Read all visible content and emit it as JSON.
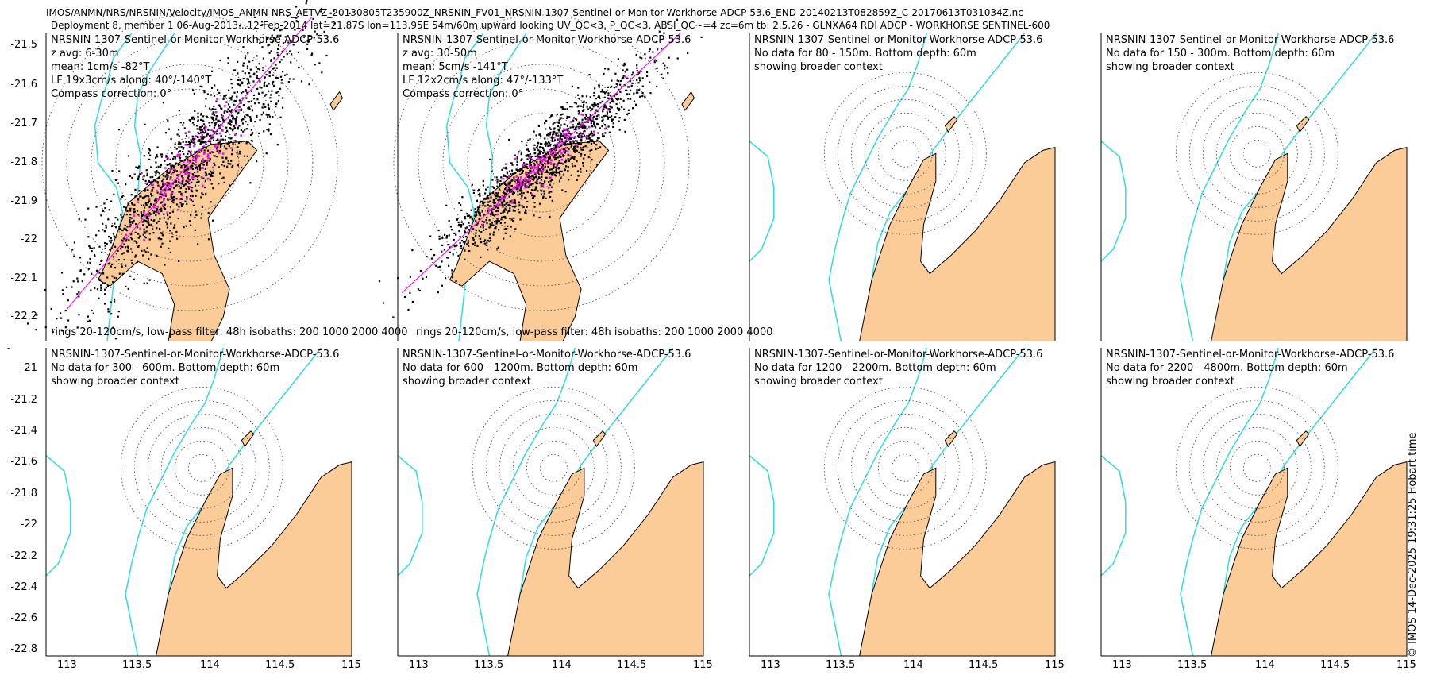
{
  "header": {
    "line1": "IMOS/ANMN/NRS/NRSNIN/Velocity/IMOS_ANMN-NRS_AETVZ_20130805T235900Z_NRSNIN_FV01_NRSNIN-1307-Sentinel-or-Monitor-Workhorse-ADCP-53.6_END-20140213T082859Z_C-20170613T031034Z.nc",
    "line2": "Deployment 8, member 1 06-Aug-2013...12-Feb-2014 lat=21.87S lon=113.95E 54m/60m upward looking UV_QC<3, P_QC<3, ABSI_QC~=4 zc=6m tb: 2.5.26 - GLNXA64 RDI ADCP - WORKHORSE SENTINEL-600"
  },
  "credit": "© IMOS 14-Dec-2025 19:31:25 Hobart time",
  "colors": {
    "land": "#fbcb98",
    "isobath": "#39dde0",
    "scatter": "#000000",
    "mean": "#ff00ff",
    "rings": "#555555"
  },
  "chart_data": [
    {
      "type": "scatter",
      "title": "NRSNIN-1307-Sentinel-or-Monitor-Workhorse-ADCP-53.6",
      "info": [
        "z avg: 6-30m",
        "mean: 1cm/s -82°T",
        "LF 19x3cm/s along: 40°/-140°T",
        "Compass correction: 0°"
      ],
      "footer": "rings 20-120cm/s, low-pass filter: 48h isobaths: 200 1000 2000 4000",
      "yticks": [
        "-21.5",
        "-21.6",
        "-21.7",
        "-21.8",
        "-21.9",
        "-22",
        "-22.1",
        "-22.2"
      ],
      "ylim": [
        -22.25,
        -21.45
      ],
      "xlim": [
        113.2,
        114.8
      ],
      "center": [
        113.95,
        -21.87
      ],
      "along_axis_deg": 40,
      "scatter_extent_deg": [
        0.5,
        0.1
      ],
      "ring_count": 6
    },
    {
      "type": "scatter",
      "title": "NRSNIN-1307-Sentinel-or-Monitor-Workhorse-ADCP-53.6",
      "info": [
        "z avg: 30-50m",
        "mean: 5cm/s -141°T",
        "LF 12x2cm/s along: 47°/-133°T",
        "Compass correction: 0°"
      ],
      "footer": "rings 20-120cm/s, low-pass filter: 48h isobaths: 200 1000 2000 4000",
      "ylim": [
        -22.25,
        -21.45
      ],
      "xlim": [
        113.2,
        114.8
      ],
      "center": [
        113.95,
        -21.87
      ],
      "along_axis_deg": 47,
      "scatter_extent_deg": [
        0.38,
        0.07
      ],
      "ring_count": 6
    },
    {
      "type": "map",
      "title": "NRSNIN-1307-Sentinel-or-Monitor-Workhorse-ADCP-53.6",
      "info": [
        "No data for 80 - 150m. Bottom depth: 60m",
        "showing broader context"
      ],
      "xlim": [
        112.9,
        115.0
      ],
      "ylim": [
        -22.25,
        -21.45
      ],
      "ring_count": 6
    },
    {
      "type": "map",
      "title": "NRSNIN-1307-Sentinel-or-Monitor-Workhorse-ADCP-53.6",
      "info": [
        "No data for 150 - 300m. Bottom depth: 60m",
        "showing broader context"
      ],
      "xlim": [
        112.9,
        115.0
      ],
      "ylim": [
        -22.25,
        -21.45
      ],
      "ring_count": 6
    },
    {
      "type": "map",
      "title": "NRSNIN-1307-Sentinel-or-Monitor-Workhorse-ADCP-53.6",
      "info": [
        "No data for 300 - 600m. Bottom depth: 60m",
        "showing broader context"
      ],
      "yticks": [
        "-21",
        "-21.2",
        "-21.4",
        "-21.6",
        "-21.8",
        "-22",
        "-22.2",
        "-22.4",
        "-22.6",
        "-22.8"
      ],
      "xticks": [
        "113",
        "113.5",
        "114",
        "114.5",
        "115"
      ],
      "xlim": [
        112.9,
        115.0
      ],
      "ylim": [
        -22.85,
        -20.9
      ],
      "ring_count": 6
    },
    {
      "type": "map",
      "title": "NRSNIN-1307-Sentinel-or-Monitor-Workhorse-ADCP-53.6",
      "info": [
        "No data for 600 - 1200m. Bottom depth: 60m",
        "showing broader context"
      ],
      "xticks": [
        "113",
        "113.5",
        "114",
        "114.5",
        "115"
      ],
      "xlim": [
        112.9,
        115.0
      ],
      "ylim": [
        -22.85,
        -20.9
      ],
      "ring_count": 6
    },
    {
      "type": "map",
      "title": "NRSNIN-1307-Sentinel-or-Monitor-Workhorse-ADCP-53.6",
      "info": [
        "No data for 1200 - 2200m. Bottom depth: 60m",
        "showing broader context"
      ],
      "xticks": [
        "113",
        "113.5",
        "114",
        "114.5",
        "115"
      ],
      "xlim": [
        112.9,
        115.0
      ],
      "ylim": [
        -22.85,
        -20.9
      ],
      "ring_count": 6
    },
    {
      "type": "map",
      "title": "NRSNIN-1307-Sentinel-or-Monitor-Workhorse-ADCP-53.6",
      "info": [
        "No data for 2200 - 4800m. Bottom depth: 60m",
        "showing broader context"
      ],
      "xticks": [
        "113",
        "113.5",
        "114",
        "114.5",
        "115"
      ],
      "xlim": [
        112.9,
        115.0
      ],
      "ylim": [
        -22.85,
        -20.9
      ],
      "ring_count": 6
    }
  ]
}
